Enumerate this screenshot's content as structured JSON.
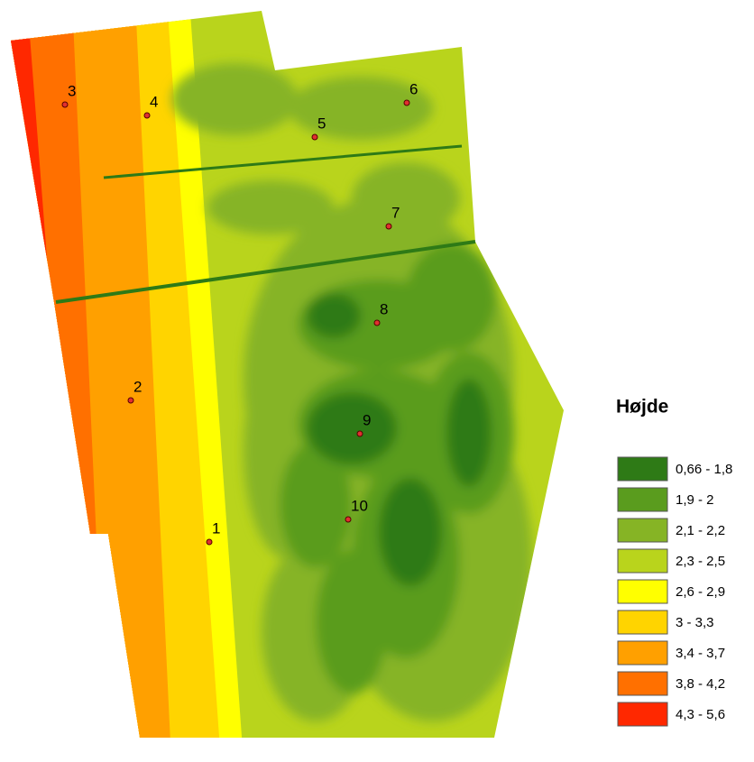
{
  "map": {
    "points": [
      "1",
      "2",
      "3",
      "4",
      "5",
      "6",
      "7",
      "8",
      "9",
      "10"
    ]
  },
  "legend": {
    "title": "Højde",
    "items": [
      {
        "label": "0,66 - 1,8",
        "color": "#2e7a16"
      },
      {
        "label": "1,9 - 2",
        "color": "#5a9c1e"
      },
      {
        "label": "2,1 - 2,2",
        "color": "#86b425"
      },
      {
        "label": "2,3 - 2,5",
        "color": "#b9d41c"
      },
      {
        "label": "2,6 - 2,9",
        "color": "#ffff00"
      },
      {
        "label": "3 - 3,3",
        "color": "#ffd400"
      },
      {
        "label": "3,4 - 3,7",
        "color": "#ffa000"
      },
      {
        "label": "3,8 - 4,2",
        "color": "#ff7000"
      },
      {
        "label": "4,3 - 5,6",
        "color": "#ff2800"
      }
    ]
  }
}
